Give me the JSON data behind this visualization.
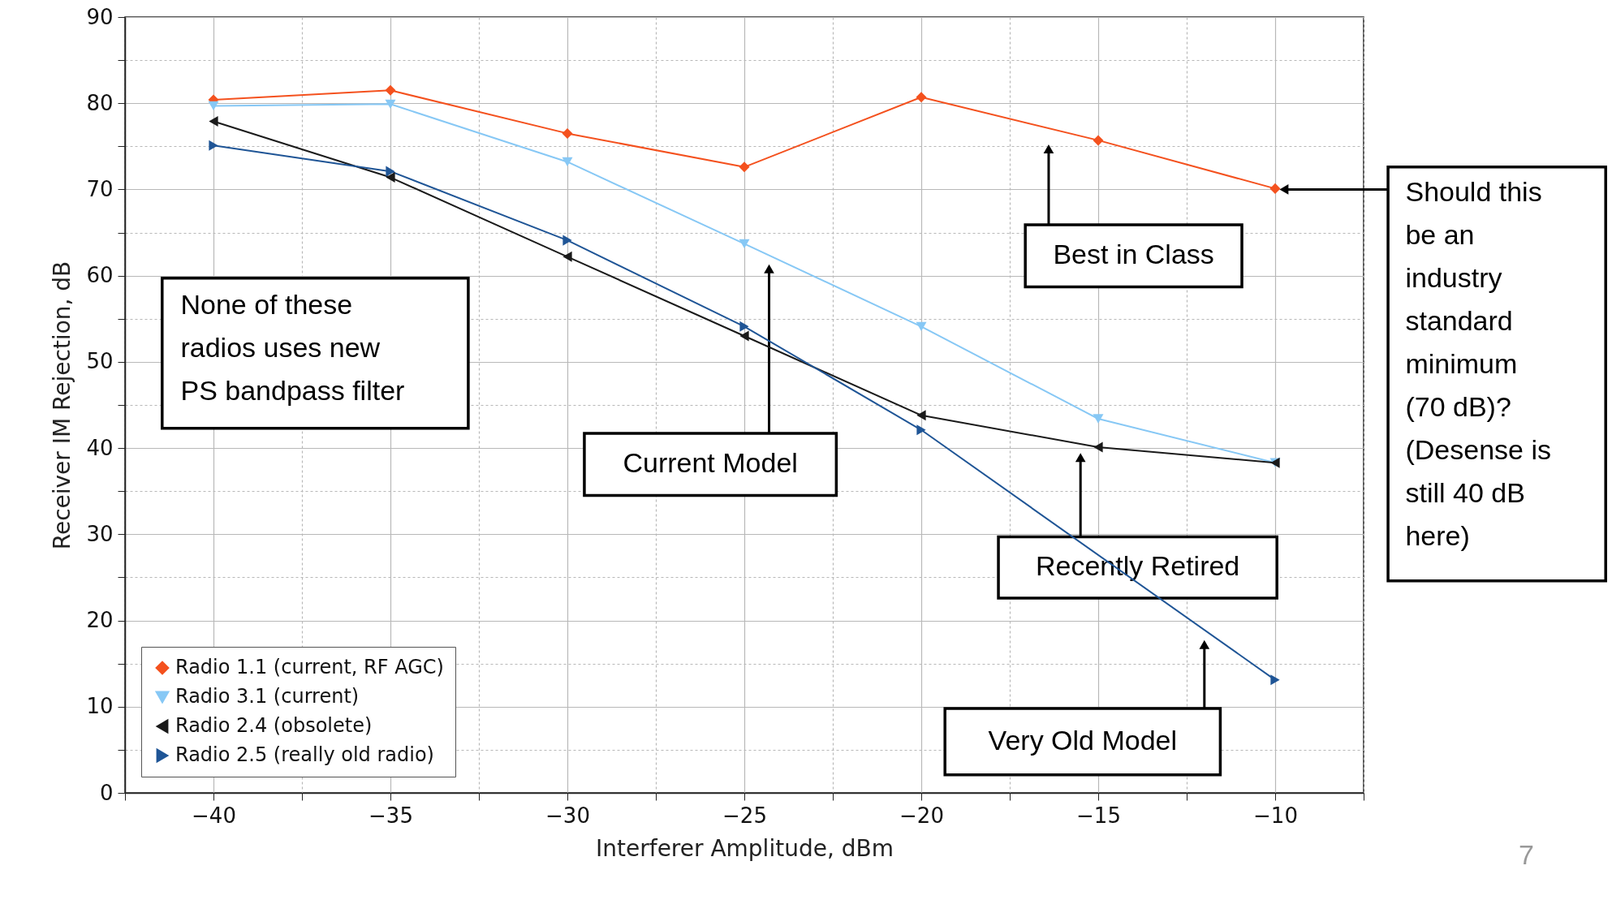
{
  "chart_data": {
    "type": "line",
    "xlabel": "Interferer Amplitude, dBm",
    "ylabel": "Receiver IM Rejection, dB",
    "x": [
      -40,
      -35,
      -30,
      -25,
      -20,
      -15,
      -10
    ],
    "series": [
      {
        "name": "Radio 1.1 (current, RF AGC)",
        "color": "#f4511e",
        "marker": "diamond",
        "values": [
          80.4,
          81.5,
          76.5,
          72.6,
          80.7,
          75.7,
          70.1
        ]
      },
      {
        "name": "Radio 3.1 (current)",
        "color": "#87c8f5",
        "marker": "triangle",
        "values": [
          79.7,
          79.9,
          73.2,
          63.7,
          54.1,
          43.4,
          38.3
        ]
      },
      {
        "name": "Radio 2.4 (obsolete)",
        "color": "#1a1a1a",
        "marker": "triangle",
        "values": [
          77.9,
          71.4,
          62.2,
          53.0,
          43.8,
          40.1,
          38.3
        ]
      },
      {
        "name": "Radio 2.5 (really old radio)",
        "color": "#1f5596",
        "marker": "triangle",
        "x": [
          -40,
          -35,
          -30,
          -25,
          -20,
          -10
        ],
        "values": [
          75.1,
          72.1,
          64.1,
          54.1,
          42.1,
          13.1
        ]
      }
    ],
    "xlim": [
      -42.5,
      -7.5
    ],
    "xticks": [
      {
        "value": -42.5,
        "label": null
      },
      {
        "value": -40,
        "label": "−40"
      },
      {
        "value": -37.5,
        "label": null
      },
      {
        "value": -35,
        "label": "−35"
      },
      {
        "value": -32.5,
        "label": null
      },
      {
        "value": -30,
        "label": "−30"
      },
      {
        "value": -27.5,
        "label": null
      },
      {
        "value": -25,
        "label": "−25"
      },
      {
        "value": -22.5,
        "label": null
      },
      {
        "value": -20,
        "label": "−20"
      },
      {
        "value": -17.5,
        "label": null
      },
      {
        "value": -15,
        "label": "−15"
      },
      {
        "value": -12.5,
        "label": null
      },
      {
        "value": -10,
        "label": "−10"
      },
      {
        "value": -7.5,
        "label": null
      }
    ],
    "ylim": [
      0,
      90
    ],
    "yticks": [
      0,
      {
        "value": 5,
        "label": null
      },
      10,
      {
        "value": 15,
        "label": null
      },
      20,
      {
        "value": 25,
        "label": null
      },
      30,
      {
        "value": 35,
        "label": null
      },
      40,
      {
        "value": 45,
        "label": null
      },
      50,
      {
        "value": 55,
        "label": null
      },
      60,
      {
        "value": 65,
        "label": null
      },
      70,
      {
        "value": 75,
        "label": null
      },
      80,
      {
        "value": 85,
        "label": null
      },
      90
    ],
    "grid": true,
    "legend": "bottom left",
    "annotations": [
      "None of these\nradios uses new\nPS bandpass filter",
      "Current Model",
      "Best in Class",
      "Recently Retired",
      "Very Old Model",
      "Should this\nbe an\nindustry\nstandard\nminimum\n(70 dB)?\n(Desense is\nstill 40 dB\nhere)",
      "7"
    ]
  }
}
